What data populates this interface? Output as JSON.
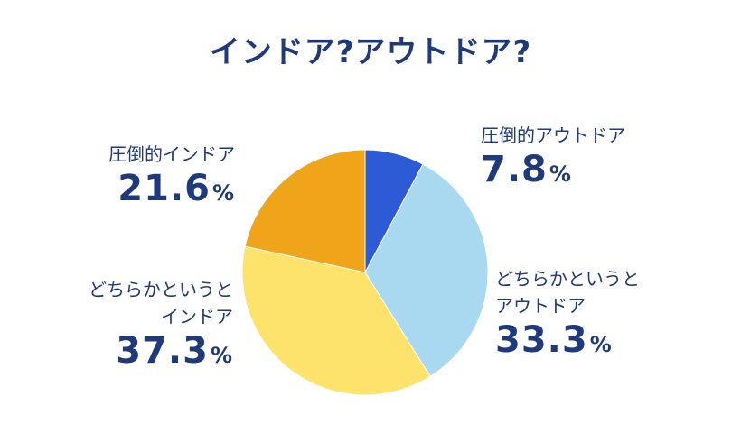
{
  "chart_data": {
    "type": "pie",
    "title": "インドア?アウトドア?",
    "slices": [
      {
        "label": "圧倒的アウトドア",
        "value": 7.8,
        "value_text": "7.8",
        "color": "#2d5bd6"
      },
      {
        "label": "どちらかというとアウトドア",
        "label_lines": [
          "どちらかというと",
          "アウトドア"
        ],
        "value": 33.3,
        "value_text": "33.3",
        "color": "#a9d9f0"
      },
      {
        "label": "どちらかというとインドア",
        "label_lines": [
          "どちらかというと",
          "インドア"
        ],
        "value": 37.3,
        "value_text": "37.3",
        "color": "#fde36c"
      },
      {
        "label": "圧倒的インドア",
        "value": 21.6,
        "value_text": "21.6",
        "color": "#f0a41a"
      }
    ],
    "unit": "%",
    "start_angle": "12 o'clock",
    "direction": "clockwise"
  }
}
